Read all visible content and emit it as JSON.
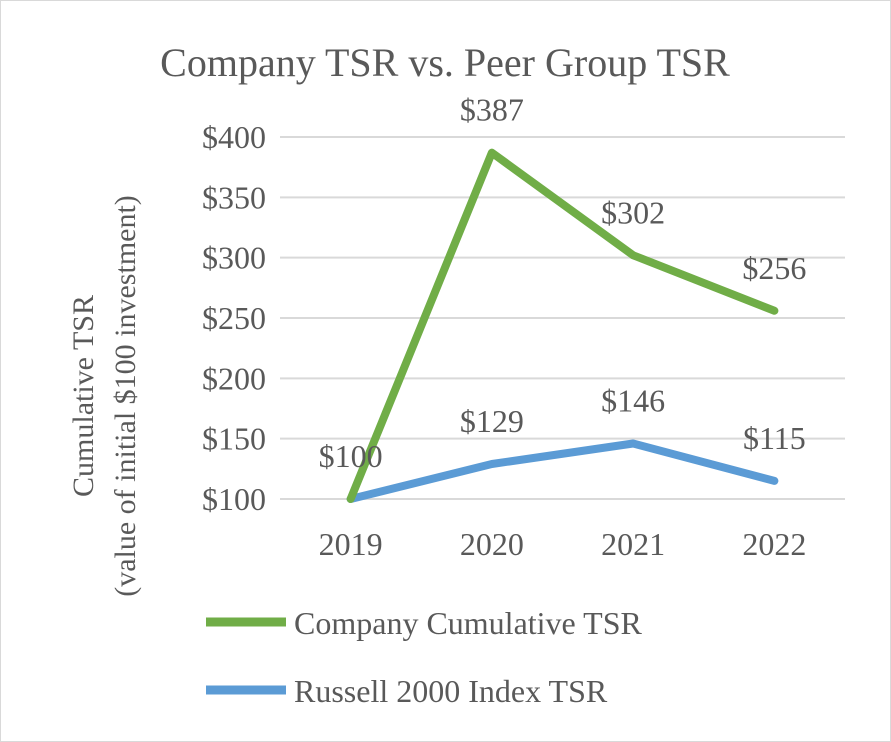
{
  "chart_data": {
    "type": "line",
    "title": "Company TSR vs. Peer Group TSR",
    "ylabel": [
      "Cumulative TSR",
      "(value of initial $100 investment)"
    ],
    "xlabel": "",
    "categories": [
      "2019",
      "2020",
      "2021",
      "2022"
    ],
    "ylim": [
      100,
      400
    ],
    "yticks": [
      100,
      150,
      200,
      250,
      300,
      350,
      400
    ],
    "ytick_labels": [
      "$100",
      "$150",
      "$200",
      "$250",
      "$300",
      "$350",
      "$400"
    ],
    "grid": true,
    "legend_position": "bottom",
    "series": [
      {
        "name": "Company Cumulative TSR",
        "color": "#70ad47",
        "values": [
          100,
          387,
          302,
          256
        ],
        "labels": [
          "$100",
          "$387",
          "$302",
          "$256"
        ]
      },
      {
        "name": "Russell 2000 Index TSR",
        "color": "#5b9bd5",
        "values": [
          100,
          129,
          146,
          115
        ],
        "labels": [
          "",
          "$129",
          "$146",
          "$115"
        ]
      }
    ]
  }
}
